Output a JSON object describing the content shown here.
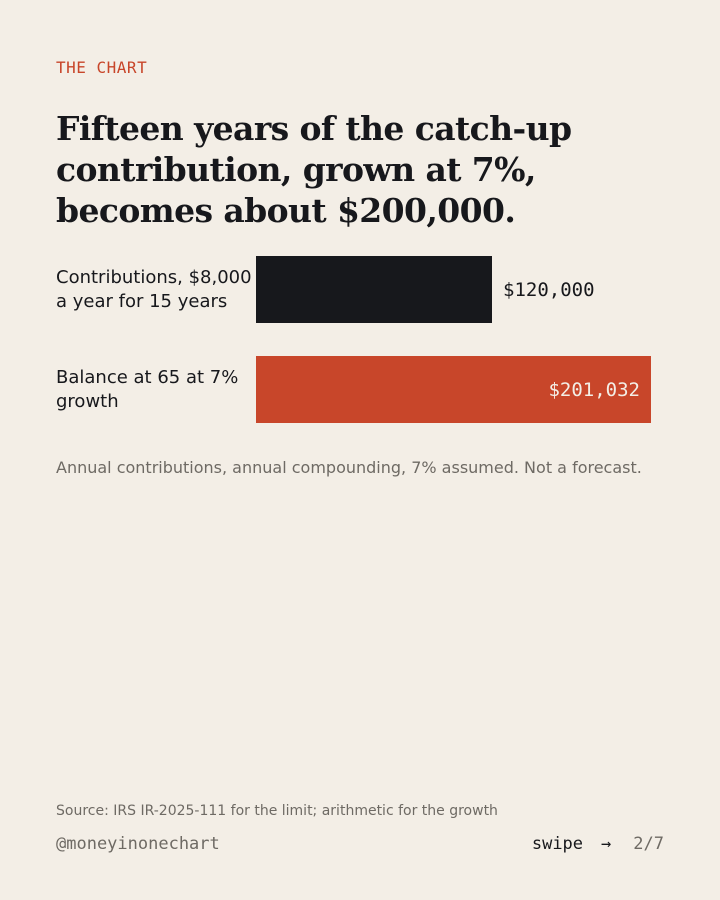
{
  "eyebrow": "THE CHART",
  "headline": "Fifteen years of the catch-up contribution, grown at 7%, becomes about $200,000.",
  "colors": {
    "background": "#f3eee6",
    "ink": "#17181c",
    "accent": "#c8462a",
    "muted": "#6e6a64"
  },
  "chart_data": {
    "type": "bar",
    "orientation": "horizontal",
    "categories": [
      "Contributions, $8,000 a year for 15 years",
      "Balance at 65 at 7% growth"
    ],
    "values": [
      120000,
      201032
    ],
    "value_labels": [
      "$120,000",
      "$201,032"
    ],
    "bar_colors": [
      "#17181c",
      "#c8462a"
    ],
    "value_label_placement": [
      "outside",
      "inside"
    ],
    "grid": false,
    "legend": "none"
  },
  "note": "Annual contributions, annual compounding, 7% assumed. Not a forecast.",
  "source": "Source: IRS IR-2025-111 for the limit; arithmetic for the growth",
  "footer": {
    "handle": "@moneyinonechart",
    "swipe_label": "swipe",
    "arrow": "→",
    "page": "2/7"
  }
}
